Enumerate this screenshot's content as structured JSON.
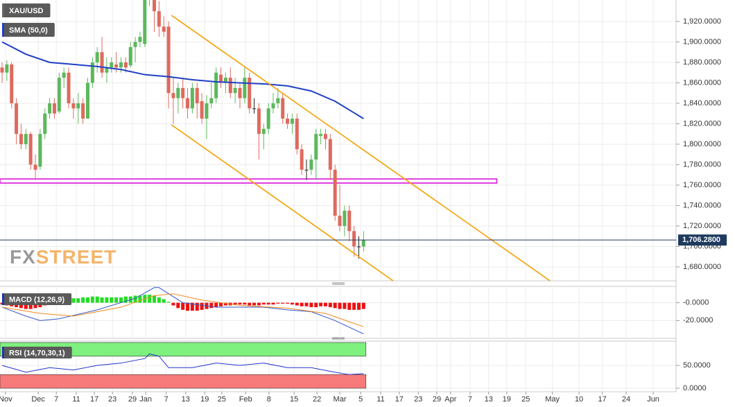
{
  "chart_data": [
    {
      "type": "candlestick",
      "title": "XAU/USD",
      "open": [
        1875,
        1870,
        1878,
        1840,
        1810,
        1800,
        1810,
        1780,
        1778,
        1810,
        1830,
        1840,
        1832,
        1865,
        1870,
        1840,
        1835,
        1840,
        1825,
        1860,
        1880,
        1890,
        1870,
        1875,
        1878,
        1875,
        1880,
        1877,
        1895,
        1900,
        1898,
        1945,
        1948,
        1930,
        1915,
        1915,
        1850,
        1845,
        1855,
        1845,
        1835,
        1855,
        1842,
        1825,
        1840,
        1845,
        1868,
        1860,
        1865,
        1850,
        1855,
        1845,
        1865,
        1835,
        1835,
        1810,
        1815,
        1835,
        1840,
        1845,
        1825,
        1820,
        1825,
        1795,
        1775,
        1775,
        1785,
        1808,
        1810,
        1805,
        1775,
        1730,
        1720,
        1735,
        1715,
        1700,
        1700
      ],
      "high": [
        1880,
        1882,
        1880,
        1845,
        1820,
        1815,
        1812,
        1790,
        1815,
        1835,
        1845,
        1845,
        1870,
        1875,
        1875,
        1845,
        1850,
        1845,
        1865,
        1885,
        1895,
        1905,
        1885,
        1885,
        1890,
        1885,
        1885,
        1900,
        1905,
        1910,
        1950,
        1955,
        1952,
        1940,
        1925,
        1920,
        1865,
        1860,
        1865,
        1855,
        1860,
        1860,
        1850,
        1848,
        1860,
        1875,
        1875,
        1870,
        1875,
        1865,
        1860,
        1875,
        1870,
        1845,
        1840,
        1820,
        1840,
        1850,
        1855,
        1850,
        1830,
        1830,
        1830,
        1800,
        1785,
        1790,
        1815,
        1815,
        1815,
        1810,
        1780,
        1760,
        1740,
        1740,
        1720,
        1710,
        1715
      ],
      "low": [
        1860,
        1862,
        1835,
        1800,
        1795,
        1795,
        1775,
        1765,
        1775,
        1805,
        1825,
        1825,
        1830,
        1855,
        1835,
        1825,
        1820,
        1820,
        1825,
        1855,
        1870,
        1865,
        1860,
        1870,
        1870,
        1870,
        1870,
        1875,
        1880,
        1895,
        1895,
        1935,
        1910,
        1905,
        1905,
        1835,
        1820,
        1830,
        1835,
        1825,
        1830,
        1825,
        1820,
        1805,
        1835,
        1840,
        1855,
        1850,
        1845,
        1840,
        1835,
        1840,
        1830,
        1830,
        1785,
        1795,
        1810,
        1830,
        1835,
        1820,
        1815,
        1810,
        1790,
        1770,
        1765,
        1770,
        1765,
        1800,
        1795,
        1765,
        1725,
        1715,
        1710,
        1705,
        1690,
        1688,
        1695
      ],
      "close": [
        1870,
        1878,
        1840,
        1810,
        1800,
        1810,
        1780,
        1775,
        1810,
        1830,
        1840,
        1830,
        1865,
        1870,
        1840,
        1835,
        1840,
        1825,
        1860,
        1880,
        1890,
        1870,
        1875,
        1880,
        1875,
        1880,
        1875,
        1895,
        1900,
        1905,
        1945,
        1948,
        1930,
        1915,
        1910,
        1850,
        1845,
        1855,
        1845,
        1835,
        1855,
        1840,
        1825,
        1840,
        1845,
        1870,
        1860,
        1865,
        1850,
        1855,
        1845,
        1865,
        1835,
        1835,
        1810,
        1815,
        1835,
        1840,
        1845,
        1825,
        1820,
        1825,
        1795,
        1775,
        1775,
        1785,
        1810,
        1810,
        1805,
        1775,
        1730,
        1720,
        1735,
        1715,
        1700,
        1700,
        1706.28
      ],
      "up_color": "#5cb85c",
      "down_color": "#de6a5e",
      "doji_color": "#222222",
      "xlim": [
        -0.44,
        141.7
      ],
      "xticks": [
        {
          "value": 0.7,
          "label": "Nov"
        },
        {
          "value": 7.6,
          "label": "Dec"
        },
        {
          "value": 11.4,
          "label": "7"
        },
        {
          "value": 15.6,
          "label": "11"
        },
        {
          "value": 19.4,
          "label": "17"
        },
        {
          "value": 23.2,
          "label": "23"
        },
        {
          "value": 27.4,
          "label": "29"
        },
        {
          "value": 30.2,
          "label": "Jan"
        },
        {
          "value": 34.5,
          "label": "7"
        },
        {
          "value": 38.6,
          "label": "13"
        },
        {
          "value": 42.6,
          "label": "19"
        },
        {
          "value": 46.2,
          "label": "25"
        },
        {
          "value": 51.2,
          "label": "Feb"
        },
        {
          "value": 56.1,
          "label": "8"
        },
        {
          "value": 61.4,
          "label": "15"
        },
        {
          "value": 66.2,
          "label": "22"
        },
        {
          "value": 71,
          "label": "Mar"
        },
        {
          "value": 75.4,
          "label": "5"
        },
        {
          "value": 79.6,
          "label": "11"
        },
        {
          "value": 83.5,
          "label": "17"
        },
        {
          "value": 87.5,
          "label": "23"
        },
        {
          "value": 91.4,
          "label": "29"
        },
        {
          "value": 94.3,
          "label": "Apr"
        },
        {
          "value": 98.4,
          "label": "7"
        },
        {
          "value": 102.3,
          "label": "13"
        },
        {
          "value": 106.1,
          "label": "19"
        },
        {
          "value": 110.1,
          "label": "25"
        },
        {
          "value": 115.7,
          "label": "May"
        },
        {
          "value": 121.3,
          "label": "10"
        },
        {
          "value": 126.2,
          "label": "17"
        },
        {
          "value": 131.2,
          "label": "24"
        },
        {
          "value": 136.9,
          "label": "Jun"
        }
      ],
      "ylim": [
        1666.4,
        1941
      ],
      "yticks": [
        {
          "value": 1680,
          "label": "1,680.0000"
        },
        {
          "value": 1700,
          "label": "1,700.0000"
        },
        {
          "value": 1720,
          "label": "1,720.0000"
        },
        {
          "value": 1740,
          "label": "1,740.0000"
        },
        {
          "value": 1760,
          "label": "1,760.0000"
        },
        {
          "value": 1780,
          "label": "1,780.0000"
        },
        {
          "value": 1800,
          "label": "1,800.0000"
        },
        {
          "value": 1820,
          "label": "1,820.0000"
        },
        {
          "value": 1840,
          "label": "1,840.0000"
        },
        {
          "value": 1860,
          "label": "1,860.0000"
        },
        {
          "value": 1880,
          "label": "1,880.0000"
        },
        {
          "value": 1900,
          "label": "1,900.0000"
        },
        {
          "value": 1920,
          "label": "1,920.0000"
        }
      ],
      "grid": true,
      "series": [
        {
          "name": "SMA (50,0)",
          "color": "#1f3fc4",
          "x": [
            0,
            5,
            10,
            15,
            20,
            25,
            30,
            35,
            40,
            45,
            50,
            55,
            60,
            65,
            70,
            76
          ],
          "values": [
            1900,
            1888,
            1880,
            1878,
            1876,
            1873,
            1868,
            1866,
            1863,
            1861,
            1860,
            1859,
            1857,
            1852,
            1842,
            1825
          ]
        }
      ],
      "trend_lines": [
        {
          "color": "#f5a000",
          "x": [
            35.6,
            115.2
          ],
          "values": [
            1926,
            1666.4
          ]
        },
        {
          "color": "#f5a000",
          "x": [
            35.6,
            82.2
          ],
          "values": [
            1819,
            1666.4
          ]
        }
      ],
      "zones": [
        {
          "color": "#e040e0",
          "x": [
            -0.44,
            104
          ],
          "values": [
            1762,
            1766
          ]
        }
      ],
      "last_price": {
        "value": 1706.28,
        "label": "1,706.2800",
        "color": "#1e3a5f"
      },
      "watermark": [
        "FX",
        "STREET"
      ]
    },
    {
      "type": "macd",
      "title": "MACD (12,26,9)",
      "histogram": [
        -2,
        -3,
        -4,
        -5,
        -6,
        -7,
        -7,
        -6,
        -5,
        -3,
        -1,
        1,
        2,
        3,
        4,
        5,
        5,
        6,
        6,
        7,
        7,
        6,
        6,
        6,
        6,
        6,
        7,
        7,
        8,
        8,
        9,
        9,
        8,
        6,
        4,
        1,
        -3,
        -6,
        -8,
        -9,
        -9,
        -9,
        -8,
        -7,
        -6,
        -5,
        -4,
        -3,
        -3,
        -2,
        -2,
        -2,
        -3,
        -3,
        -3,
        -2,
        -2,
        -2,
        -1,
        -1,
        -1,
        -2,
        -3,
        -4,
        -4,
        -5,
        -5,
        -4,
        -4,
        -5,
        -6,
        -7,
        -7,
        -8,
        -8,
        -8,
        -7
      ],
      "up_color": "#22dd22",
      "down_color": "#ee1111",
      "ylim": [
        -40,
        18.4
      ],
      "yticks": [
        {
          "value": 0,
          "label": "-0.0000"
        },
        {
          "value": -20,
          "label": "-20.0000"
        }
      ],
      "series": [
        {
          "color": "#3355cc",
          "x": [
            0,
            5,
            8,
            12,
            20,
            28,
            32,
            33,
            38,
            45,
            55,
            60,
            65,
            70,
            76
          ],
          "values": [
            -5,
            -15,
            -20,
            -18,
            -8,
            5,
            17,
            17,
            0,
            -5,
            -5,
            -8,
            -10,
            -20,
            -35
          ]
        },
        {
          "color": "#f08a1c",
          "x": [
            0,
            8,
            15,
            25,
            32,
            36,
            42,
            50,
            60,
            68,
            76
          ],
          "values": [
            -5,
            -12,
            -15,
            -5,
            8,
            10,
            3,
            -3,
            -6,
            -12,
            -27
          ]
        }
      ]
    },
    {
      "type": "rsi",
      "title": "RSI (14,70,30,1)",
      "ylim": [
        -7.6,
        103
      ],
      "yticks": [
        {
          "value": 50,
          "label": "50.0000"
        },
        {
          "value": 0,
          "label": "0.0000"
        }
      ],
      "bands": [
        {
          "range": [
            70,
            100
          ],
          "color": "#7ef07e"
        },
        {
          "range": [
            0,
            30
          ],
          "color": "#f77a7a"
        }
      ],
      "series": [
        {
          "color": "#2233cc",
          "x": [
            0,
            5,
            10,
            15,
            20,
            25,
            30,
            31,
            33,
            35,
            40,
            45,
            50,
            55,
            60,
            65,
            70,
            73,
            76
          ],
          "values": [
            50,
            35,
            45,
            40,
            50,
            55,
            65,
            75,
            70,
            45,
            45,
            55,
            50,
            55,
            45,
            45,
            35,
            30,
            32
          ]
        }
      ]
    }
  ]
}
